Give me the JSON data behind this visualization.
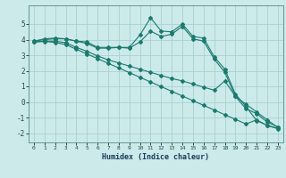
{
  "xlabel": "Humidex (Indice chaleur)",
  "ylabel": "",
  "bg_color": "#cceaea",
  "grid_color": "#aad0d0",
  "line_color": "#1a7a6e",
  "xlim": [
    -0.5,
    23.5
  ],
  "ylim": [
    -2.6,
    6.2
  ],
  "xticks": [
    0,
    1,
    2,
    3,
    4,
    5,
    6,
    7,
    8,
    9,
    10,
    11,
    12,
    13,
    14,
    15,
    16,
    17,
    18,
    19,
    20,
    21,
    22,
    23
  ],
  "yticks": [
    -2,
    -1,
    0,
    1,
    2,
    3,
    4,
    5
  ],
  "line1_x": [
    0,
    1,
    2,
    3,
    4,
    5,
    6,
    7,
    8,
    9,
    10,
    11,
    12,
    13,
    14,
    15,
    16,
    17,
    18,
    19,
    20,
    21,
    22,
    23
  ],
  "line1_y": [
    3.9,
    4.0,
    4.05,
    4.05,
    3.9,
    3.85,
    3.5,
    3.5,
    3.5,
    3.5,
    4.3,
    5.4,
    4.55,
    4.5,
    5.0,
    4.2,
    4.1,
    2.9,
    2.1,
    0.5,
    -0.3,
    -1.2,
    -1.5,
    -1.7
  ],
  "line2_x": [
    0,
    1,
    2,
    3,
    4,
    5,
    6,
    7,
    8,
    9,
    10,
    11,
    12,
    13,
    14,
    15,
    16,
    17,
    18,
    19,
    20,
    21,
    22,
    23
  ],
  "line2_y": [
    3.9,
    4.05,
    4.1,
    4.05,
    3.9,
    3.75,
    3.45,
    3.45,
    3.5,
    3.45,
    3.85,
    4.55,
    4.2,
    4.35,
    4.85,
    4.05,
    3.9,
    2.75,
    1.9,
    0.35,
    -0.45,
    -0.75,
    -1.3,
    -1.6
  ],
  "line3_x": [
    0,
    1,
    2,
    3,
    4,
    5,
    6,
    7,
    8,
    9,
    10,
    11,
    12,
    13,
    14,
    15,
    16,
    17,
    18,
    19,
    20,
    21,
    22,
    23
  ],
  "line3_y": [
    3.85,
    3.9,
    3.9,
    3.8,
    3.5,
    3.25,
    2.95,
    2.7,
    2.5,
    2.3,
    2.1,
    1.9,
    1.7,
    1.5,
    1.35,
    1.15,
    0.95,
    0.75,
    1.35,
    0.35,
    -0.15,
    -0.65,
    -1.15,
    -1.65
  ],
  "line4_x": [
    0,
    1,
    2,
    3,
    4,
    5,
    6,
    7,
    8,
    9,
    10,
    11,
    12,
    13,
    14,
    15,
    16,
    17,
    18,
    19,
    20,
    21,
    22,
    23
  ],
  "line4_y": [
    3.85,
    3.88,
    3.82,
    3.68,
    3.38,
    3.08,
    2.78,
    2.48,
    2.18,
    1.88,
    1.58,
    1.28,
    0.98,
    0.68,
    0.38,
    0.08,
    -0.22,
    -0.52,
    -0.82,
    -1.12,
    -1.42,
    -1.15,
    -1.52,
    -1.72
  ]
}
